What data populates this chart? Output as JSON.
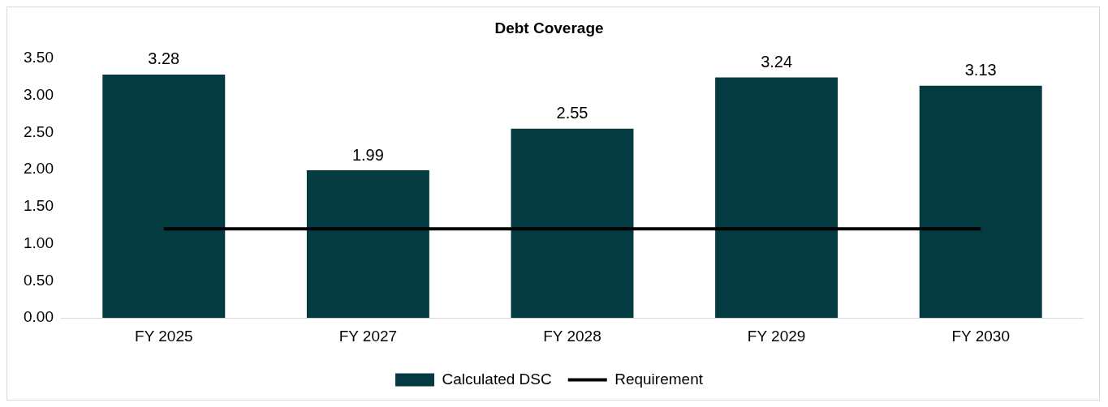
{
  "chart_data": {
    "type": "bar",
    "title": "Debt Coverage",
    "categories": [
      "FY 2025",
      "FY 2027",
      "FY 2028",
      "FY 2029",
      "FY 2030"
    ],
    "series": [
      {
        "name": "Calculated DSC",
        "color": "#033b40",
        "values": [
          3.28,
          1.99,
          2.55,
          3.24,
          3.13
        ],
        "value_labels": [
          "3.28",
          "1.99",
          "2.55",
          "3.24",
          "3.13"
        ]
      },
      {
        "name": "Requirement",
        "type": "line",
        "color": "#000000",
        "values": [
          1.2,
          1.2,
          1.2,
          1.2,
          1.2
        ],
        "marker": "none"
      }
    ],
    "ylim": [
      0,
      3.5
    ],
    "yticks": [
      {
        "value": 0,
        "label": "0.00"
      },
      {
        "value": 0.5,
        "label": "0.50"
      },
      {
        "value": 1,
        "label": "1.00"
      },
      {
        "value": 1.5,
        "label": "1.50"
      },
      {
        "value": 2,
        "label": "2.00"
      },
      {
        "value": 2.5,
        "label": "2.50"
      },
      {
        "value": 3,
        "label": "3.00"
      },
      {
        "value": 3.5,
        "label": "3.50"
      }
    ],
    "grid": false,
    "legend": "bottom"
  }
}
